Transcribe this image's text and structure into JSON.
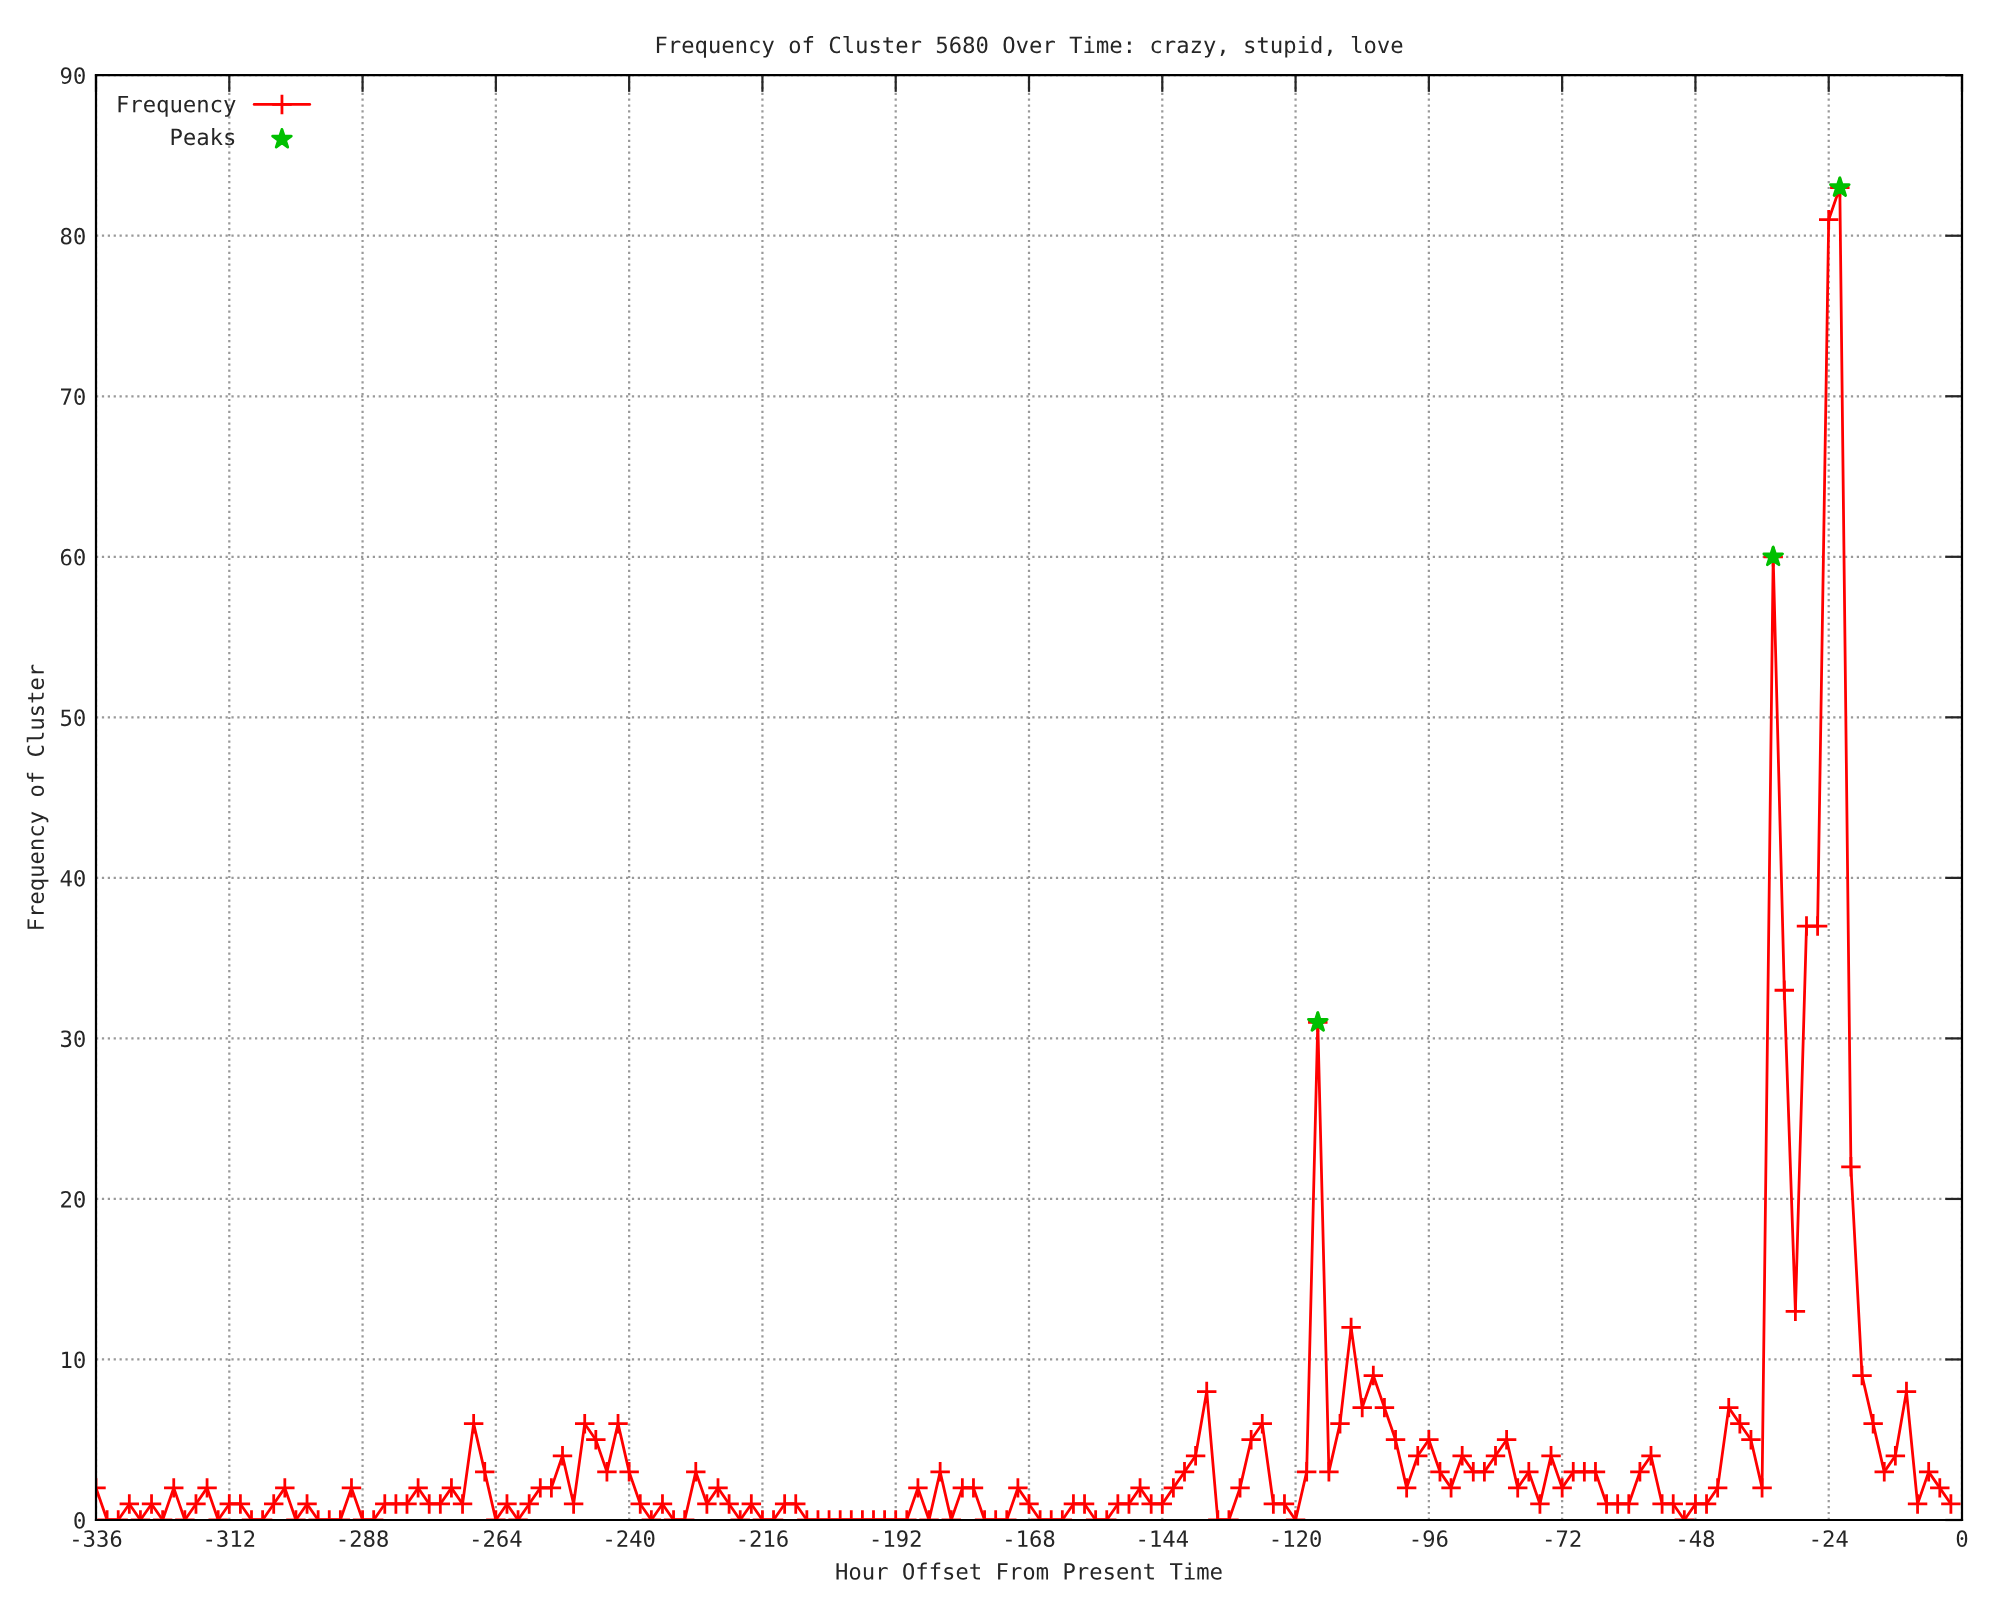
{
  "chart_data": {
    "type": "line",
    "title": "Frequency of Cluster 5680 Over Time: crazy, stupid, love",
    "xlabel": "Hour Offset From Present Time",
    "ylabel": "Frequency of Cluster",
    "xlim": [
      -336,
      0
    ],
    "xticks": [
      -336,
      -312,
      -288,
      -264,
      -240,
      -216,
      -192,
      -168,
      -144,
      -120,
      -96,
      -72,
      -48,
      -24,
      0
    ],
    "ylim": [
      0,
      90
    ],
    "yticks": [
      0,
      10,
      20,
      30,
      40,
      50,
      60,
      70,
      80,
      90
    ],
    "grid": true,
    "legend": "top left",
    "series": [
      {
        "name": "Frequency",
        "color": "#ff0000",
        "marker": "cross",
        "x": [
          -336,
          -334,
          -332,
          -330,
          -328,
          -326,
          -324,
          -322,
          -320,
          -318,
          -316,
          -314,
          -312,
          -310,
          -308,
          -306,
          -304,
          -302,
          -300,
          -298,
          -296,
          -294,
          -292,
          -290,
          -288,
          -286,
          -284,
          -282,
          -280,
          -278,
          -276,
          -274,
          -272,
          -270,
          -268,
          -266,
          -264,
          -262,
          -260,
          -258,
          -256,
          -254,
          -252,
          -250,
          -248,
          -246,
          -244,
          -242,
          -240,
          -238,
          -236,
          -234,
          -232,
          -230,
          -228,
          -226,
          -224,
          -222,
          -220,
          -218,
          -216,
          -214,
          -212,
          -210,
          -208,
          -206,
          -204,
          -202,
          -200,
          -198,
          -196,
          -194,
          -192,
          -190,
          -188,
          -186,
          -184,
          -182,
          -180,
          -178,
          -176,
          -174,
          -172,
          -170,
          -168,
          -166,
          -164,
          -162,
          -160,
          -158,
          -156,
          -154,
          -152,
          -150,
          -148,
          -146,
          -144,
          -142,
          -140,
          -138,
          -136,
          -134,
          -132,
          -130,
          -128,
          -126,
          -124,
          -122,
          -120,
          -118,
          -116,
          -114,
          -112,
          -110,
          -108,
          -106,
          -104,
          -102,
          -100,
          -98,
          -96,
          -94,
          -92,
          -90,
          -88,
          -86,
          -84,
          -82,
          -80,
          -78,
          -76,
          -74,
          -72,
          -70,
          -68,
          -66,
          -64,
          -62,
          -60,
          -58,
          -56,
          -54,
          -52,
          -50,
          -48,
          -46,
          -44,
          -42,
          -40,
          -38,
          -36,
          -34,
          -32,
          -30,
          -28,
          -26,
          -24,
          -22,
          -20,
          -18,
          -16,
          -14,
          -12,
          -10,
          -8,
          -6,
          -4,
          -2
        ],
        "values": [
          2,
          0,
          0,
          1,
          0,
          1,
          0,
          2,
          0,
          1,
          2,
          0,
          1,
          1,
          0,
          0,
          1,
          2,
          0,
          1,
          0,
          0,
          0,
          2,
          0,
          0,
          1,
          1,
          1,
          2,
          1,
          1,
          2,
          1,
          6,
          3,
          0,
          1,
          0,
          1,
          2,
          2,
          4,
          1,
          6,
          5,
          3,
          6,
          3,
          1,
          0,
          1,
          0,
          0,
          3,
          1,
          2,
          1,
          0,
          1,
          0,
          0,
          1,
          1,
          0,
          0,
          0,
          0,
          0,
          0,
          0,
          0,
          0,
          0,
          2,
          0,
          3,
          0,
          2,
          2,
          0,
          0,
          0,
          2,
          1,
          0,
          0,
          0,
          1,
          1,
          0,
          0,
          1,
          1,
          2,
          1,
          1,
          2,
          3,
          4,
          8,
          0,
          0,
          2,
          5,
          6,
          1,
          1,
          0,
          3,
          31,
          3,
          6,
          12,
          7,
          9,
          7,
          5,
          2,
          4,
          5,
          3,
          2,
          4,
          3,
          3,
          4,
          5,
          2,
          3,
          1,
          4,
          2,
          3,
          3,
          3,
          1,
          1,
          1,
          3,
          4,
          1,
          1,
          0,
          1,
          1,
          2,
          7,
          6,
          5,
          2,
          60,
          33,
          13,
          37,
          37,
          81,
          83,
          22,
          9,
          6,
          3,
          4,
          8,
          1,
          3,
          2,
          1
        ]
      },
      {
        "name": "Peaks",
        "type": "scatter",
        "color": "#00c000",
        "marker": "star",
        "x": [
          -116,
          -34,
          -22
        ],
        "values": [
          31,
          60,
          83
        ]
      }
    ]
  }
}
